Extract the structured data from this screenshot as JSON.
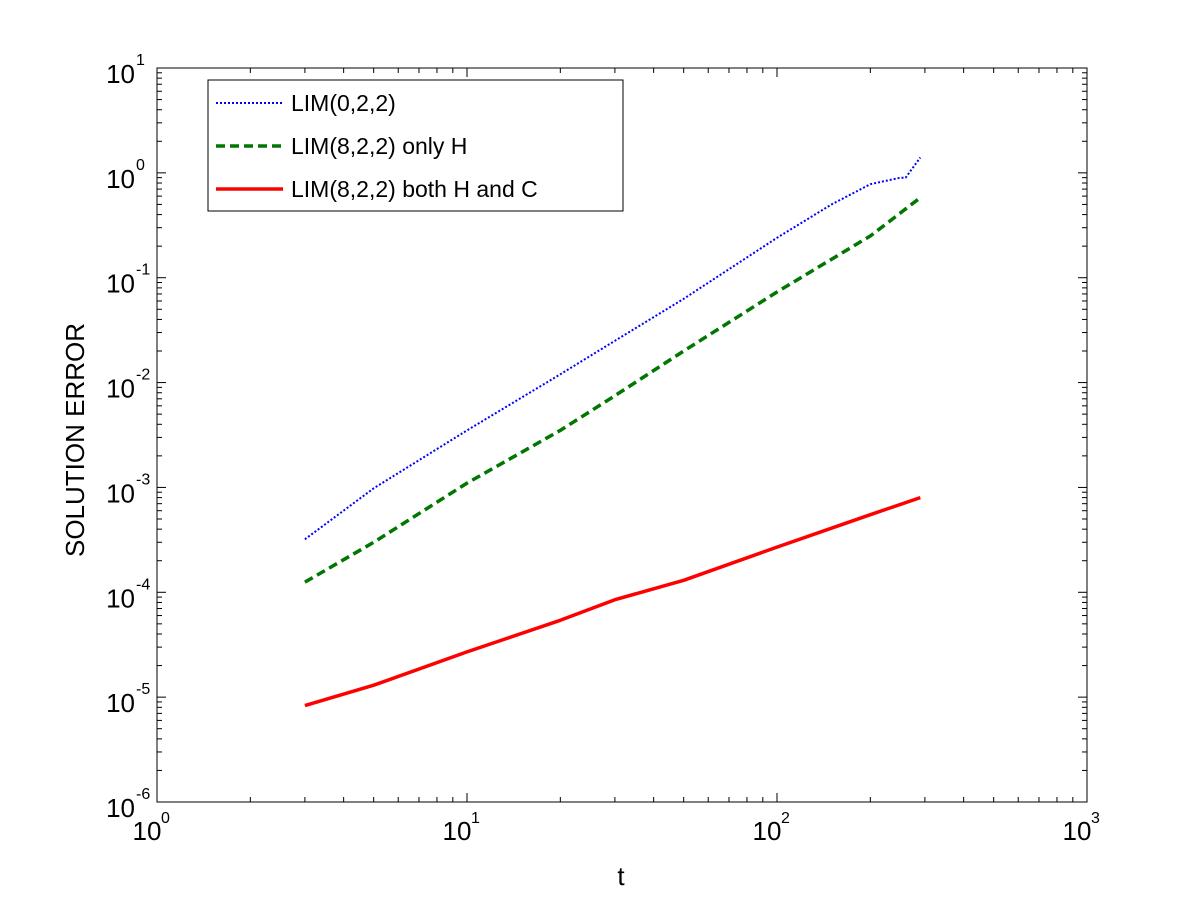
{
  "chart_data": {
    "type": "line",
    "title": "",
    "xlabel": "t",
    "ylabel": "SOLUTION ERROR",
    "xscale": "log",
    "yscale": "log",
    "xlim": [
      1,
      1000
    ],
    "ylim": [
      1e-06,
      10
    ],
    "grid": false,
    "legend_position": "top-left",
    "x_ticks": [
      {
        "value": 1,
        "base": "10",
        "exp": "0"
      },
      {
        "value": 10,
        "base": "10",
        "exp": "1"
      },
      {
        "value": 100,
        "base": "10",
        "exp": "2"
      },
      {
        "value": 1000,
        "base": "10",
        "exp": "3"
      }
    ],
    "y_ticks": [
      {
        "value": 1e-06,
        "base": "10",
        "exp": "-6"
      },
      {
        "value": 1e-05,
        "base": "10",
        "exp": "-5"
      },
      {
        "value": 0.0001,
        "base": "10",
        "exp": "-4"
      },
      {
        "value": 0.001,
        "base": "10",
        "exp": "-3"
      },
      {
        "value": 0.01,
        "base": "10",
        "exp": "-2"
      },
      {
        "value": 0.1,
        "base": "10",
        "exp": "-1"
      },
      {
        "value": 1,
        "base": "10",
        "exp": "0"
      },
      {
        "value": 10,
        "base": "10",
        "exp": "1"
      }
    ],
    "series": [
      {
        "name": "LIM(0,2,2)",
        "color": "#0000ff",
        "style": "dotted",
        "x": [
          3,
          5,
          10,
          20,
          30,
          50,
          100,
          150,
          200,
          250,
          260,
          290
        ],
        "y": [
          0.00032,
          0.00098,
          0.0035,
          0.012,
          0.025,
          0.063,
          0.24,
          0.5,
          0.78,
          0.9,
          0.9,
          1.4
        ]
      },
      {
        "name": "LIM(8,2,2) only H",
        "color": "#007700",
        "style": "dashed",
        "x": [
          3,
          5,
          10,
          20,
          30,
          50,
          100,
          150,
          200,
          290
        ],
        "y": [
          0.000125,
          0.0003,
          0.0011,
          0.0035,
          0.0075,
          0.02,
          0.073,
          0.15,
          0.25,
          0.58
        ]
      },
      {
        "name": "LIM(8,2,2) both H and C",
        "color": "#ff0000",
        "style": "solid",
        "x": [
          3,
          5,
          10,
          20,
          30,
          50,
          100,
          200,
          290
        ],
        "y": [
          8.3e-06,
          1.3e-05,
          2.7e-05,
          5.4e-05,
          8.5e-05,
          0.00013,
          0.00027,
          0.00055,
          0.0008
        ]
      }
    ]
  }
}
